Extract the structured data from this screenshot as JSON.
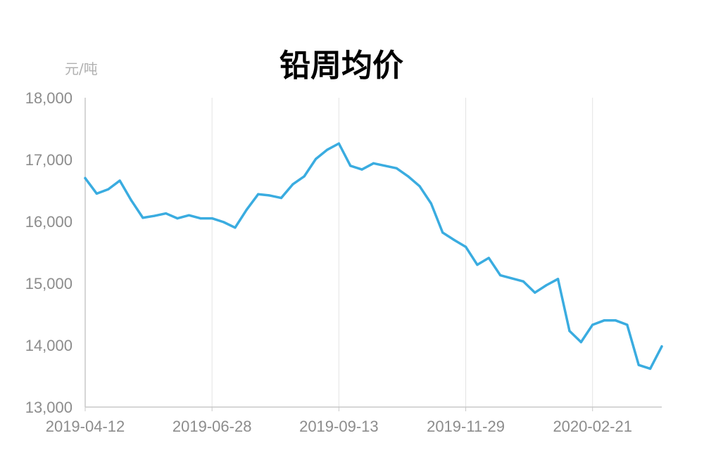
{
  "chart_data": {
    "type": "line",
    "title": "铅周均价",
    "unit_label": "元/吨",
    "ylim": [
      13000,
      18000
    ],
    "yticks": [
      "13,000",
      "14,000",
      "15,000",
      "16,000",
      "17,000",
      "18,000"
    ],
    "ytick_values": [
      13000,
      14000,
      15000,
      16000,
      17000,
      18000
    ],
    "xtick_labels": [
      "2019-04-12",
      "2019-06-28",
      "2019-09-13",
      "2019-11-29",
      "2020-02-21"
    ],
    "xtick_indices": [
      0,
      11,
      22,
      33,
      44
    ],
    "grid": "vertical",
    "line_color": "#3aace0",
    "series": [
      {
        "values": [
          16700,
          16450,
          16520,
          16660,
          16340,
          16060,
          16090,
          16130,
          16050,
          16100,
          16050,
          16050,
          15990,
          15900,
          16190,
          16440,
          16420,
          16380,
          16600,
          16730,
          17010,
          17160,
          17260,
          16900,
          16840,
          16940,
          16900,
          16860,
          16730,
          16570,
          16290,
          15820,
          15700,
          15590,
          15300,
          15410,
          15130,
          15080,
          15030,
          14850,
          14970,
          15070,
          14230,
          14050,
          14330,
          14400,
          14400,
          14330,
          13680,
          13620,
          13980
        ]
      }
    ]
  }
}
